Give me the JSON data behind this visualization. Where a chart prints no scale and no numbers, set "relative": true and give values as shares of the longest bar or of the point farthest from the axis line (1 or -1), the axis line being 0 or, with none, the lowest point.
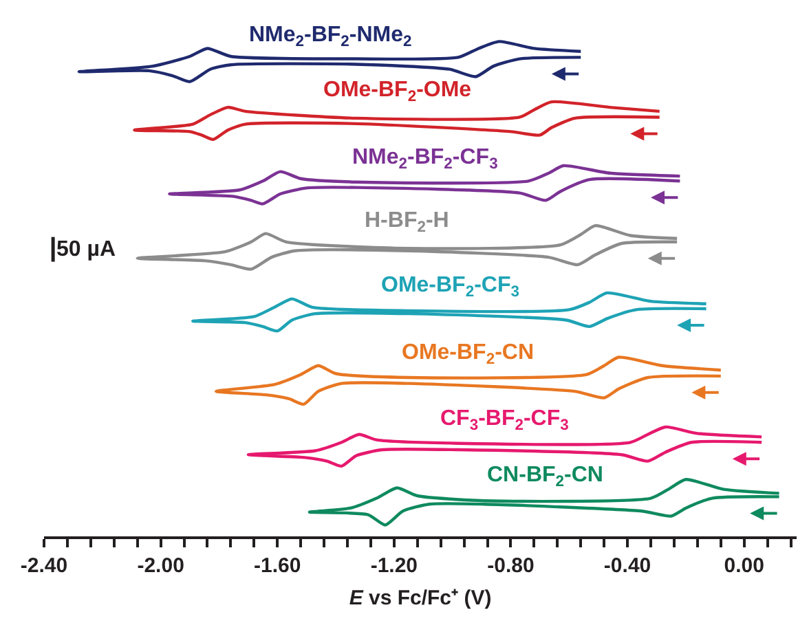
{
  "chart_data": {
    "type": "line",
    "relative": true,
    "xlabel": "E vs Fc/Fc⁺ (V)",
    "xlim": [
      -2.4,
      0.18
    ],
    "xticks": [
      {
        "value": -2.4,
        "label": "-2.40"
      },
      {
        "value": -2.32,
        "label": null
      },
      {
        "value": -2.24,
        "label": null
      },
      {
        "value": -2.16,
        "label": null
      },
      {
        "value": -2.08,
        "label": null
      },
      {
        "value": -2.0,
        "label": "-2.00"
      },
      {
        "value": -1.92,
        "label": null
      },
      {
        "value": -1.84,
        "label": null
      },
      {
        "value": -1.76,
        "label": null
      },
      {
        "value": -1.68,
        "label": null
      },
      {
        "value": -1.6,
        "label": "-1.60"
      },
      {
        "value": -1.52,
        "label": null
      },
      {
        "value": -1.44,
        "label": null
      },
      {
        "value": -1.36,
        "label": null
      },
      {
        "value": -1.28,
        "label": null
      },
      {
        "value": -1.2,
        "label": "-1.20"
      },
      {
        "value": -1.12,
        "label": null
      },
      {
        "value": -1.04,
        "label": null
      },
      {
        "value": -0.96,
        "label": null
      },
      {
        "value": -0.88,
        "label": null
      },
      {
        "value": -0.8,
        "label": "-0.80"
      },
      {
        "value": -0.72,
        "label": null
      },
      {
        "value": -0.64,
        "label": null
      },
      {
        "value": -0.56,
        "label": null
      },
      {
        "value": -0.48,
        "label": null
      },
      {
        "value": -0.4,
        "label": "-0.40"
      },
      {
        "value": -0.32,
        "label": null
      },
      {
        "value": -0.24,
        "label": null
      },
      {
        "value": -0.16,
        "label": null
      },
      {
        "value": -0.08,
        "label": null
      },
      {
        "value": 0.0,
        "label": "0.00"
      },
      {
        "value": 0.08,
        "label": null
      },
      {
        "value": 0.16,
        "label": null
      }
    ],
    "annotations": [
      "50 µA"
    ],
    "legend": false,
    "marker": "none",
    "line_style": "solid",
    "series": [
      {
        "name": "NMe$_{2}$-BF$_{2}$-NMe$_{2}$",
        "color": "#1f2a6e",
        "x": [
          -0.56,
          -0.72,
          -0.84,
          -0.91,
          -0.98,
          -1.33,
          -1.76,
          -1.84,
          -1.9,
          -2.03,
          -2.28,
          -2.04,
          -1.96,
          -1.9,
          -1.83,
          -1.76,
          -1.33,
          -1.01,
          -0.92,
          -0.86,
          -0.77,
          -0.56
        ],
        "values": [
          0.98,
          0.986,
          1.0,
          0.986,
          0.968,
          0.965,
          0.97,
          0.986,
          0.97,
          0.95,
          0.939,
          0.941,
          0.931,
          0.919,
          0.944,
          0.953,
          0.954,
          0.944,
          0.929,
          0.95,
          0.965,
          0.968
        ]
      },
      {
        "name": "OMe-BF$_{2}$-OMe",
        "color": "#d2232a",
        "x": [
          -0.29,
          -0.46,
          -0.66,
          -0.72,
          -0.77,
          -1.33,
          -1.71,
          -1.77,
          -1.83,
          -1.89,
          -2.09,
          -1.9,
          -1.86,
          -1.82,
          -1.77,
          -1.71,
          -1.33,
          -0.8,
          -0.7,
          -0.66,
          -0.58,
          -0.29
        ],
        "values": [
          0.859,
          0.867,
          0.878,
          0.862,
          0.847,
          0.845,
          0.859,
          0.867,
          0.852,
          0.833,
          0.821,
          0.818,
          0.811,
          0.802,
          0.821,
          0.833,
          0.834,
          0.818,
          0.811,
          0.826,
          0.845,
          0.847
        ]
      },
      {
        "name": "NMe$_{2}$-BF$_{2}$-CF$_{3}$",
        "color": "#7b3294",
        "x": [
          -0.22,
          -0.46,
          -0.62,
          -0.67,
          -0.74,
          -1.33,
          -1.52,
          -1.59,
          -1.65,
          -1.73,
          -1.97,
          -1.75,
          -1.69,
          -1.65,
          -1.59,
          -1.5,
          -1.33,
          -0.77,
          -0.68,
          -0.63,
          -0.53,
          -0.22
        ],
        "values": [
          0.728,
          0.734,
          0.749,
          0.734,
          0.718,
          0.716,
          0.723,
          0.737,
          0.718,
          0.7,
          0.692,
          0.687,
          0.679,
          0.672,
          0.692,
          0.704,
          0.705,
          0.694,
          0.679,
          0.697,
          0.721,
          0.718
        ]
      },
      {
        "name": "H-BF$_{2}$-H",
        "color": "#8c8c8c",
        "x": [
          -0.23,
          -0.39,
          -0.51,
          -0.56,
          -0.63,
          -1.15,
          -1.57,
          -1.64,
          -1.69,
          -1.78,
          -2.08,
          -1.85,
          -1.76,
          -1.69,
          -1.62,
          -1.54,
          -1.15,
          -0.67,
          -0.57,
          -0.51,
          -0.42,
          -0.23
        ],
        "values": [
          0.602,
          0.608,
          0.628,
          0.61,
          0.589,
          0.582,
          0.595,
          0.612,
          0.595,
          0.575,
          0.562,
          0.557,
          0.549,
          0.54,
          0.564,
          0.577,
          0.577,
          0.564,
          0.549,
          0.569,
          0.592,
          0.595
        ]
      },
      {
        "name": "OMe-BF$_{2}$-CF$_{3}$",
        "color": "#1ea3b5",
        "x": [
          -0.13,
          -0.32,
          -0.47,
          -0.53,
          -0.6,
          -1.15,
          -1.48,
          -1.55,
          -1.61,
          -1.68,
          -1.89,
          -1.71,
          -1.65,
          -1.6,
          -1.55,
          -1.47,
          -1.15,
          -0.61,
          -0.53,
          -0.47,
          -0.37,
          -0.13
        ],
        "values": [
          0.47,
          0.475,
          0.492,
          0.473,
          0.458,
          0.456,
          0.463,
          0.48,
          0.463,
          0.444,
          0.435,
          0.432,
          0.424,
          0.415,
          0.437,
          0.45,
          0.45,
          0.437,
          0.424,
          0.44,
          0.458,
          0.46
        ]
      },
      {
        "name": "OMe-BF$_{2}$-CN",
        "color": "#e87722",
        "x": [
          -0.08,
          -0.28,
          -0.43,
          -0.48,
          -0.54,
          -1.15,
          -1.4,
          -1.46,
          -1.52,
          -1.61,
          -1.81,
          -1.64,
          -1.56,
          -1.51,
          -1.46,
          -1.38,
          -1.15,
          -0.58,
          -0.48,
          -0.43,
          -0.33,
          -0.08
        ],
        "values": [
          0.336,
          0.345,
          0.362,
          0.345,
          0.327,
          0.321,
          0.329,
          0.345,
          0.327,
          0.307,
          0.293,
          0.286,
          0.278,
          0.267,
          0.293,
          0.309,
          0.309,
          0.293,
          0.28,
          0.298,
          0.321,
          0.324
        ]
      },
      {
        "name": "CF$_{3}$-BF$_{2}$-CF$_{3}$",
        "color": "#e6196e",
        "x": [
          0.06,
          -0.16,
          -0.27,
          -0.33,
          -0.39,
          -0.98,
          -1.26,
          -1.32,
          -1.38,
          -1.47,
          -1.7,
          -1.5,
          -1.43,
          -1.38,
          -1.33,
          -1.24,
          -0.98,
          -0.42,
          -0.33,
          -0.27,
          -0.18,
          0.06
        ],
        "values": [
          0.201,
          0.208,
          0.221,
          0.206,
          0.19,
          0.188,
          0.195,
          0.206,
          0.19,
          0.173,
          0.165,
          0.159,
          0.152,
          0.142,
          0.163,
          0.175,
          0.175,
          0.165,
          0.152,
          0.17,
          0.19,
          0.19
        ]
      },
      {
        "name": "CN-BF$_{2}$-CN",
        "color": "#0f8a5f",
        "x": [
          0.12,
          -0.07,
          -0.2,
          -0.26,
          -0.32,
          -0.89,
          -1.12,
          -1.19,
          -1.26,
          -1.35,
          -1.49,
          -1.29,
          -1.23,
          -1.17,
          -1.08,
          -0.89,
          -0.35,
          -0.25,
          -0.2,
          -0.11,
          0.12
        ],
        "values": [
          0.087,
          0.095,
          0.115,
          0.095,
          0.077,
          0.072,
          0.082,
          0.098,
          0.077,
          0.057,
          0.049,
          0.044,
          0.023,
          0.051,
          0.065,
          0.065,
          0.051,
          0.041,
          0.057,
          0.077,
          0.08
        ]
      }
    ]
  }
}
